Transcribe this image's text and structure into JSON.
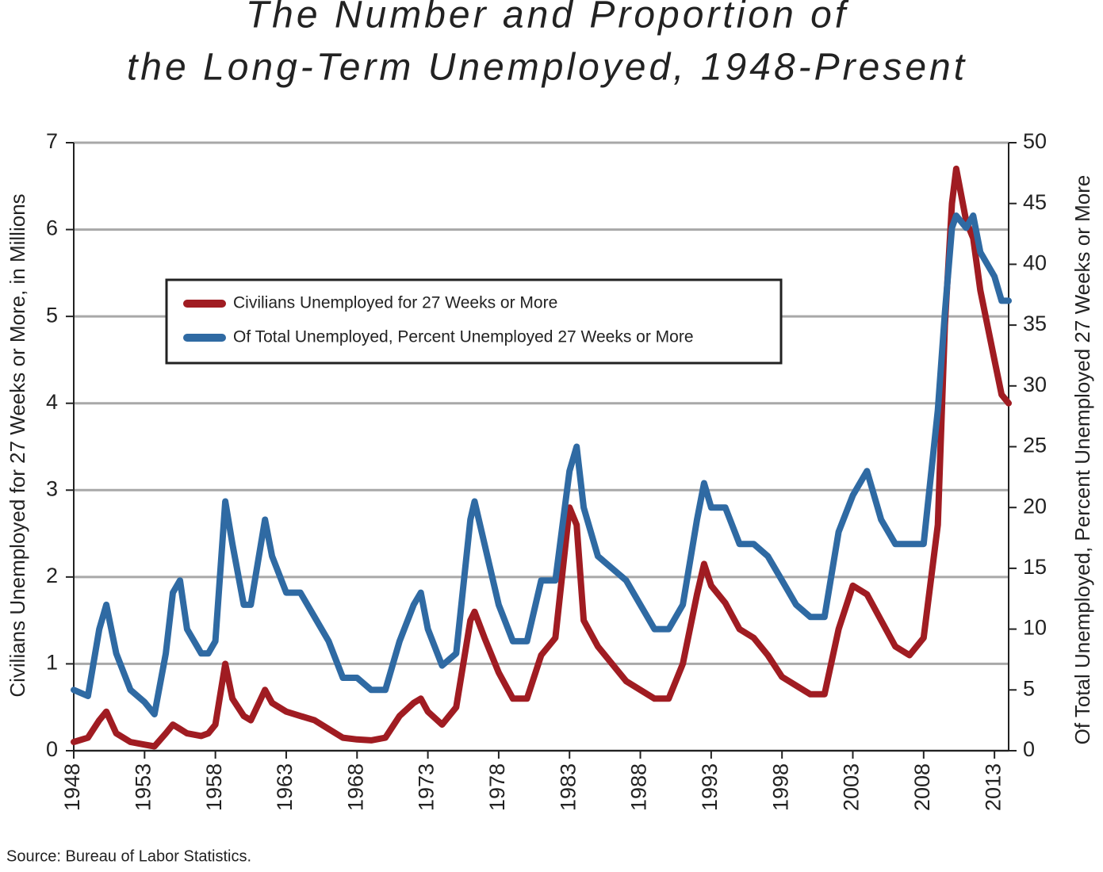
{
  "chart_data": {
    "type": "line",
    "title": [
      "The Number and Proportion of",
      "the Long-Term Unemployed, 1948-Present"
    ],
    "ylabel": "Civilians Unemployed for 27 Weeks or More, in Millions",
    "y2label": "Of Total Unemployed, Percent Unemployed 27 Weeks or More",
    "source": "Source: Bureau of Labor Statistics.",
    "x": [
      1948,
      1949,
      1949.8,
      1950.3,
      1951,
      1952,
      1953,
      1953.7,
      1954.5,
      1955,
      1955.5,
      1956,
      1957,
      1957.5,
      1958,
      1958.7,
      1959.2,
      1960,
      1960.5,
      1961.5,
      1962,
      1963,
      1964,
      1965,
      1966,
      1967,
      1968,
      1969,
      1970,
      1971,
      1972,
      1972.5,
      1973,
      1974,
      1975,
      1976,
      1976.3,
      1977,
      1978,
      1979,
      1980,
      1981,
      1982,
      1983,
      1983.5,
      1984,
      1985,
      1986,
      1987,
      1988,
      1989,
      1990,
      1991,
      1992,
      1992.5,
      1993,
      1994,
      1995,
      1996,
      1997,
      1998,
      1999,
      2000,
      2001,
      2002,
      2003,
      2004,
      2005,
      2006,
      2007,
      2008,
      2009,
      2009.5,
      2010,
      2010.3,
      2011,
      2011.5,
      2012,
      2013,
      2013.5,
      2014
    ],
    "series": [
      {
        "name": "Civilians Unemployed for 27 Weeks or More",
        "color": "#a01c22",
        "values": [
          0.1,
          0.15,
          0.35,
          0.45,
          0.2,
          0.1,
          0.07,
          0.05,
          0.2,
          0.3,
          0.25,
          0.2,
          0.17,
          0.2,
          0.3,
          1.0,
          0.6,
          0.4,
          0.35,
          0.7,
          0.55,
          0.45,
          0.4,
          0.35,
          0.25,
          0.15,
          0.13,
          0.12,
          0.15,
          0.4,
          0.55,
          0.6,
          0.45,
          0.3,
          0.5,
          1.5,
          1.6,
          1.3,
          0.9,
          0.6,
          0.6,
          1.1,
          1.3,
          2.8,
          2.6,
          1.5,
          1.2,
          1.0,
          0.8,
          0.7,
          0.6,
          0.6,
          1.0,
          1.8,
          2.15,
          1.9,
          1.7,
          1.4,
          1.3,
          1.1,
          0.85,
          0.75,
          0.65,
          0.65,
          1.4,
          1.9,
          1.8,
          1.5,
          1.2,
          1.1,
          1.3,
          2.6,
          4.9,
          6.3,
          6.7,
          6.1,
          5.9,
          5.3,
          4.5,
          4.1,
          4.0
        ]
      },
      {
        "name": "Of Total Unemployed, Percent Unemployed 27 Weeks or More",
        "color": "#2f6aa3",
        "axis": "y2",
        "values": [
          5,
          4.5,
          10,
          12,
          8,
          5,
          4,
          3,
          8,
          13,
          14,
          10,
          8,
          8,
          9,
          20.5,
          17,
          12,
          12,
          19,
          16,
          13,
          13,
          11,
          9,
          6,
          6,
          5,
          5,
          9,
          12,
          13,
          10,
          7,
          8,
          19,
          20.5,
          17,
          12,
          9,
          9,
          14,
          14,
          23,
          25,
          20,
          16,
          15,
          14,
          12,
          10,
          10,
          12,
          19,
          22,
          20,
          20,
          17,
          17,
          16,
          14,
          12,
          11,
          11,
          18,
          21,
          23,
          19,
          17,
          17,
          17,
          28,
          36,
          43,
          44,
          43,
          44,
          41,
          39,
          37,
          37
        ]
      }
    ],
    "xlim": [
      1948,
      2014
    ],
    "xticks": [
      1948,
      1953,
      1958,
      1963,
      1968,
      1973,
      1978,
      1983,
      1988,
      1993,
      1998,
      2003,
      2008,
      2013
    ],
    "ylim": [
      0,
      7
    ],
    "yticks": [
      0,
      1,
      2,
      3,
      4,
      5,
      6,
      7
    ],
    "y2lim": [
      0,
      50
    ],
    "y2ticks": [
      0,
      5,
      10,
      15,
      20,
      25,
      30,
      35,
      40,
      45,
      50
    ],
    "grid": true,
    "legend": "upper left"
  }
}
